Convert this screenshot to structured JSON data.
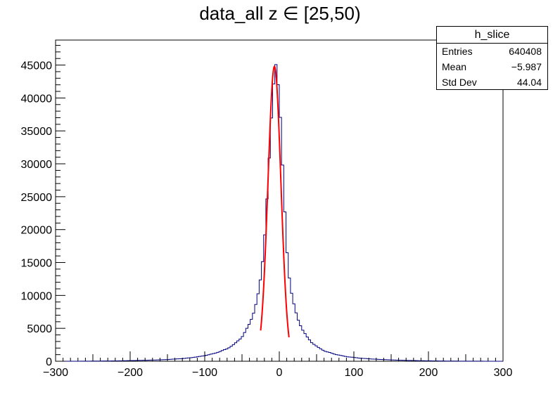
{
  "title": "data_all z ∈ [25,50)",
  "stats": {
    "name": "h_slice",
    "rows": [
      {
        "label": "Entries",
        "value": "640408"
      },
      {
        "label": "Mean",
        "value": "−5.987"
      },
      {
        "label": "Std Dev",
        "value": "44.04"
      }
    ]
  },
  "chart_data": {
    "type": "histogram",
    "title": "data_all z ∈ [25,50)",
    "xlim": [
      -300,
      300
    ],
    "ylim": [
      0,
      48800
    ],
    "xticks": [
      -300,
      -200,
      -100,
      0,
      100,
      200,
      300
    ],
    "xtick_labels": [
      "−300",
      "−200",
      "−100",
      "0",
      "100",
      "200",
      "300"
    ],
    "yticks": [
      0,
      5000,
      10000,
      15000,
      20000,
      25000,
      30000,
      35000,
      40000,
      45000
    ],
    "yticks_labels": [
      "0",
      "5000",
      "10000",
      "15000",
      "20000",
      "25000",
      "30000",
      "35000",
      "40000",
      "45000"
    ],
    "grid": false,
    "histogram": {
      "color": "#000080",
      "bin_width": 3,
      "points": [
        [
          -300,
          0
        ],
        [
          -270,
          5
        ],
        [
          -250,
          20
        ],
        [
          -230,
          40
        ],
        [
          -210,
          70
        ],
        [
          -190,
          120
        ],
        [
          -170,
          180
        ],
        [
          -150,
          260
        ],
        [
          -130,
          400
        ],
        [
          -120,
          520
        ],
        [
          -110,
          660
        ],
        [
          -100,
          850
        ],
        [
          -90,
          1100
        ],
        [
          -80,
          1450
        ],
        [
          -70,
          1900
        ],
        [
          -60,
          2600
        ],
        [
          -50,
          3700
        ],
        [
          -45,
          4600
        ],
        [
          -40,
          5700
        ],
        [
          -35,
          7200
        ],
        [
          -30,
          9200
        ],
        [
          -27,
          11000
        ],
        [
          -24,
          13500
        ],
        [
          -21,
          17000
        ],
        [
          -18,
          22000
        ],
        [
          -15,
          27500
        ],
        [
          -12,
          33500
        ],
        [
          -10,
          37500
        ],
        [
          -8,
          41500
        ],
        [
          -6,
          44500
        ],
        [
          -5,
          46000
        ],
        [
          -4,
          45500
        ],
        [
          -3,
          44800
        ],
        [
          -2,
          43000
        ],
        [
          0,
          40500
        ],
        [
          2,
          35500
        ],
        [
          4,
          30500
        ],
        [
          6,
          26000
        ],
        [
          8,
          21500
        ],
        [
          10,
          17500
        ],
        [
          12,
          14300
        ],
        [
          15,
          11300
        ],
        [
          18,
          9300
        ],
        [
          21,
          7900
        ],
        [
          24,
          6700
        ],
        [
          28,
          5600
        ],
        [
          32,
          4600
        ],
        [
          37,
          3700
        ],
        [
          44,
          2800
        ],
        [
          52,
          2100
        ],
        [
          62,
          1500
        ],
        [
          75,
          1050
        ],
        [
          90,
          700
        ],
        [
          110,
          450
        ],
        [
          130,
          300
        ],
        [
          150,
          200
        ],
        [
          170,
          130
        ],
        [
          190,
          80
        ],
        [
          210,
          50
        ],
        [
          230,
          25
        ],
        [
          260,
          10
        ],
        [
          300,
          0
        ]
      ]
    },
    "fit": {
      "color": "#ff0000",
      "x_range": [
        -25,
        13
      ],
      "mean": -6.5,
      "sigma": 8.7,
      "peak": 44800
    }
  }
}
